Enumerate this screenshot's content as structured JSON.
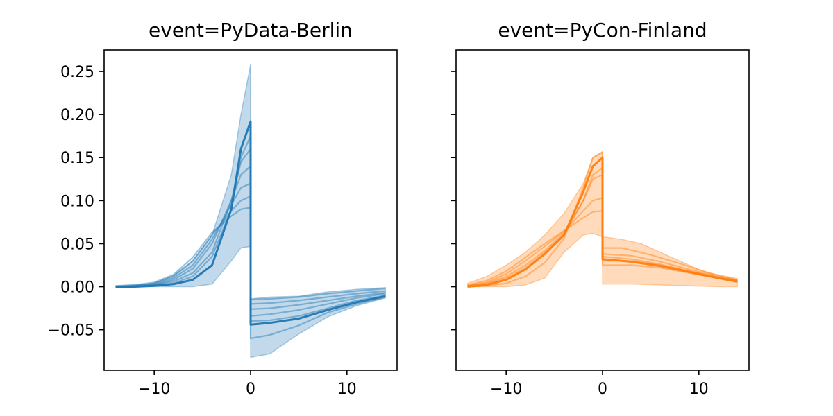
{
  "chart_data": [
    {
      "type": "line",
      "title": "event=PyData-Berlin",
      "color": "#1f77b4",
      "xlim": [
        -15.2,
        15.2
      ],
      "ylim": [
        -0.097,
        0.275
      ],
      "xticks": [
        -10,
        0,
        10
      ],
      "xtick_labels": [
        "−10",
        "0",
        "10"
      ],
      "yticks": [
        -0.05,
        0.0,
        0.05,
        0.1,
        0.15,
        0.2,
        0.25
      ],
      "ytick_labels": [
        "−0.05",
        "0.00",
        "0.05",
        "0.10",
        "0.15",
        "0.20",
        "0.25"
      ],
      "x_range": [
        -14,
        14
      ],
      "band": {
        "upper": [
          [
            -14,
            0.001
          ],
          [
            -12,
            0.002
          ],
          [
            -10,
            0.004
          ],
          [
            -8,
            0.013
          ],
          [
            -6,
            0.03
          ],
          [
            -4,
            0.06
          ],
          [
            -2,
            0.13
          ],
          [
            -1,
            0.2
          ],
          [
            0,
            0.258
          ],
          [
            0,
            -0.014
          ],
          [
            2,
            -0.012
          ],
          [
            5,
            -0.011
          ],
          [
            8,
            -0.006
          ],
          [
            11,
            -0.003
          ],
          [
            14,
            -0.001
          ]
        ],
        "lower": [
          [
            -14,
            0.0
          ],
          [
            -12,
            0.0
          ],
          [
            -10,
            0.0
          ],
          [
            -8,
            0.0
          ],
          [
            -6,
            0.0
          ],
          [
            -4,
            0.003
          ],
          [
            -2,
            0.03
          ],
          [
            -1,
            0.045
          ],
          [
            0,
            0.047
          ],
          [
            0,
            -0.082
          ],
          [
            2,
            -0.078
          ],
          [
            3,
            -0.07
          ],
          [
            5,
            -0.055
          ],
          [
            8,
            -0.035
          ],
          [
            11,
            -0.022
          ],
          [
            14,
            -0.013
          ]
        ]
      },
      "series": [
        {
          "values": [
            [
              -14,
              0.0
            ],
            [
              -12,
              0.0
            ],
            [
              -10,
              0.001
            ],
            [
              -8,
              0.003
            ],
            [
              -6,
              0.008
            ],
            [
              -4,
              0.025
            ],
            [
              -2,
              0.09
            ],
            [
              -1,
              0.16
            ],
            [
              0,
              0.192
            ],
            [
              0,
              -0.044
            ],
            [
              2,
              -0.042
            ],
            [
              5,
              -0.037
            ],
            [
              8,
              -0.027
            ],
            [
              11,
              -0.018
            ],
            [
              14,
              -0.011
            ]
          ]
        },
        {
          "values": [
            [
              -14,
              0.0
            ],
            [
              -12,
              0.0
            ],
            [
              -10,
              0.002
            ],
            [
              -8,
              0.006
            ],
            [
              -6,
              0.016
            ],
            [
              -4,
              0.04
            ],
            [
              -2,
              0.1
            ],
            [
              -1,
              0.145
            ],
            [
              0,
              0.16
            ],
            [
              0,
              -0.04
            ],
            [
              2,
              -0.039
            ],
            [
              5,
              -0.034
            ],
            [
              8,
              -0.025
            ],
            [
              11,
              -0.016
            ],
            [
              14,
              -0.01
            ]
          ]
        },
        {
          "values": [
            [
              -14,
              0.0
            ],
            [
              -12,
              0.0
            ],
            [
              -10,
              0.002
            ],
            [
              -8,
              0.008
            ],
            [
              -6,
              0.021
            ],
            [
              -4,
              0.05
            ],
            [
              -2,
              0.1
            ],
            [
              -1,
              0.13
            ],
            [
              0,
              0.14
            ],
            [
              0,
              -0.034
            ],
            [
              2,
              -0.032
            ],
            [
              5,
              -0.027
            ],
            [
              8,
              -0.02
            ],
            [
              11,
              -0.013
            ],
            [
              14,
              -0.008
            ]
          ]
        },
        {
          "values": [
            [
              -14,
              0.0
            ],
            [
              -12,
              0.001
            ],
            [
              -10,
              0.003
            ],
            [
              -8,
              0.01
            ],
            [
              -6,
              0.025
            ],
            [
              -4,
              0.055
            ],
            [
              -2,
              0.095
            ],
            [
              -1,
              0.115
            ],
            [
              0,
              0.12
            ],
            [
              0,
              -0.026
            ],
            [
              2,
              -0.025
            ],
            [
              5,
              -0.021
            ],
            [
              8,
              -0.016
            ],
            [
              11,
              -0.011
            ],
            [
              14,
              -0.007
            ]
          ]
        },
        {
          "values": [
            [
              -14,
              0.0
            ],
            [
              -12,
              0.001
            ],
            [
              -10,
              0.004
            ],
            [
              -8,
              0.012
            ],
            [
              -6,
              0.03
            ],
            [
              -4,
              0.06
            ],
            [
              -2,
              0.088
            ],
            [
              -1,
              0.1
            ],
            [
              0,
              0.105
            ],
            [
              0,
              -0.02
            ],
            [
              2,
              -0.019
            ],
            [
              5,
              -0.016
            ],
            [
              8,
              -0.012
            ],
            [
              11,
              -0.008
            ],
            [
              14,
              -0.005
            ]
          ]
        },
        {
          "values": [
            [
              -14,
              0.001
            ],
            [
              -12,
              0.002
            ],
            [
              -10,
              0.005
            ],
            [
              -8,
              0.014
            ],
            [
              -6,
              0.034
            ],
            [
              -4,
              0.063
            ],
            [
              -2,
              0.082
            ],
            [
              -1,
              0.09
            ],
            [
              0,
              0.092
            ],
            [
              0,
              -0.015
            ],
            [
              2,
              -0.014
            ],
            [
              5,
              -0.012
            ],
            [
              8,
              -0.008
            ],
            [
              11,
              -0.005
            ],
            [
              14,
              -0.002
            ]
          ]
        },
        {
          "values": [
            [
              -14,
              0.0
            ],
            [
              -12,
              0.0
            ],
            [
              -10,
              0.001
            ],
            [
              -8,
              0.004
            ],
            [
              -6,
              0.012
            ],
            [
              -4,
              0.035
            ],
            [
              -2,
              0.09
            ],
            [
              -1,
              0.15
            ],
            [
              0,
              0.175
            ],
            [
              0,
              -0.06
            ],
            [
              2,
              -0.056
            ],
            [
              5,
              -0.045
            ],
            [
              8,
              -0.03
            ],
            [
              11,
              -0.02
            ],
            [
              14,
              -0.012
            ]
          ]
        }
      ]
    },
    {
      "type": "line",
      "title": "event=PyCon-Finland",
      "color": "#ff7f0e",
      "xlim": [
        -15.2,
        15.2
      ],
      "ylim": [
        -0.097,
        0.275
      ],
      "xticks": [
        -10,
        0,
        10
      ],
      "xtick_labels": [
        "−10",
        "0",
        "10"
      ],
      "yticks": [
        -0.05,
        0.0,
        0.05,
        0.1,
        0.15,
        0.2,
        0.25
      ],
      "ytick_labels": [],
      "x_range": [
        -14,
        14
      ],
      "band": {
        "upper": [
          [
            -14,
            0.004
          ],
          [
            -12,
            0.012
          ],
          [
            -10,
            0.025
          ],
          [
            -8,
            0.04
          ],
          [
            -6,
            0.06
          ],
          [
            -4,
            0.085
          ],
          [
            -2,
            0.12
          ],
          [
            -1,
            0.15
          ],
          [
            0,
            0.157
          ],
          [
            0,
            0.058
          ],
          [
            2,
            0.055
          ],
          [
            4,
            0.05
          ],
          [
            6,
            0.04
          ],
          [
            8,
            0.03
          ],
          [
            10,
            0.02
          ],
          [
            12,
            0.013
          ],
          [
            14,
            0.008
          ]
        ],
        "lower": [
          [
            -14,
            0.0
          ],
          [
            -12,
            0.0
          ],
          [
            -10,
            0.0
          ],
          [
            -8,
            0.002
          ],
          [
            -6,
            0.01
          ],
          [
            -4,
            0.04
          ],
          [
            -2,
            0.06
          ],
          [
            -1,
            0.062
          ],
          [
            0,
            0.058
          ],
          [
            0,
            0.003
          ],
          [
            3,
            0.003
          ],
          [
            6,
            0.002
          ],
          [
            9,
            0.001
          ],
          [
            12,
            0.0
          ],
          [
            14,
            0.0
          ]
        ]
      },
      "series": [
        {
          "values": [
            [
              -14,
              0.0
            ],
            [
              -12,
              0.002
            ],
            [
              -10,
              0.008
            ],
            [
              -8,
              0.02
            ],
            [
              -6,
              0.038
            ],
            [
              -4,
              0.06
            ],
            [
              -2,
              0.11
            ],
            [
              -1,
              0.14
            ],
            [
              0,
              0.15
            ],
            [
              0,
              0.032
            ],
            [
              3,
              0.029
            ],
            [
              6,
              0.024
            ],
            [
              9,
              0.017
            ],
            [
              12,
              0.01
            ],
            [
              14,
              0.006
            ]
          ]
        },
        {
          "values": [
            [
              -14,
              0.001
            ],
            [
              -12,
              0.004
            ],
            [
              -10,
              0.012
            ],
            [
              -8,
              0.025
            ],
            [
              -6,
              0.042
            ],
            [
              -4,
              0.062
            ],
            [
              -2,
              0.1
            ],
            [
              -1,
              0.125
            ],
            [
              0,
              0.13
            ],
            [
              0,
              0.03
            ],
            [
              3,
              0.03
            ],
            [
              6,
              0.025
            ],
            [
              9,
              0.018
            ],
            [
              12,
              0.011
            ],
            [
              14,
              0.007
            ]
          ]
        },
        {
          "values": [
            [
              -14,
              0.001
            ],
            [
              -12,
              0.005
            ],
            [
              -10,
              0.015
            ],
            [
              -8,
              0.03
            ],
            [
              -6,
              0.047
            ],
            [
              -4,
              0.064
            ],
            [
              -2,
              0.088
            ],
            [
              -1,
              0.1
            ],
            [
              0,
              0.103
            ],
            [
              0,
              0.035
            ],
            [
              3,
              0.032
            ],
            [
              6,
              0.026
            ],
            [
              9,
              0.018
            ],
            [
              12,
              0.011
            ],
            [
              14,
              0.007
            ]
          ]
        },
        {
          "values": [
            [
              -14,
              0.002
            ],
            [
              -12,
              0.007
            ],
            [
              -10,
              0.018
            ],
            [
              -8,
              0.034
            ],
            [
              -6,
              0.05
            ],
            [
              -4,
              0.065
            ],
            [
              -2,
              0.08
            ],
            [
              -1,
              0.087
            ],
            [
              0,
              0.088
            ],
            [
              0,
              0.038
            ],
            [
              3,
              0.036
            ],
            [
              6,
              0.029
            ],
            [
              9,
              0.02
            ],
            [
              12,
              0.012
            ],
            [
              14,
              0.008
            ]
          ]
        },
        {
          "values": [
            [
              -14,
              0.0
            ],
            [
              -12,
              0.001
            ],
            [
              -10,
              0.004
            ],
            [
              -8,
              0.012
            ],
            [
              -6,
              0.028
            ],
            [
              -4,
              0.056
            ],
            [
              -2,
              0.115
            ],
            [
              -1,
              0.15
            ],
            [
              0,
              0.156
            ],
            [
              0,
              0.025
            ],
            [
              3,
              0.025
            ],
            [
              6,
              0.022
            ],
            [
              9,
              0.016
            ],
            [
              12,
              0.01
            ],
            [
              14,
              0.005
            ]
          ]
        },
        {
          "values": [
            [
              -14,
              0.001
            ],
            [
              -12,
              0.003
            ],
            [
              -10,
              0.01
            ],
            [
              -8,
              0.022
            ],
            [
              -6,
              0.04
            ],
            [
              -4,
              0.06
            ],
            [
              -2,
              0.1
            ],
            [
              -1,
              0.13
            ],
            [
              0,
              0.138
            ],
            [
              0,
              0.045
            ],
            [
              2,
              0.045
            ],
            [
              5,
              0.037
            ],
            [
              8,
              0.027
            ],
            [
              11,
              0.016
            ],
            [
              14,
              0.009
            ]
          ]
        }
      ]
    }
  ]
}
